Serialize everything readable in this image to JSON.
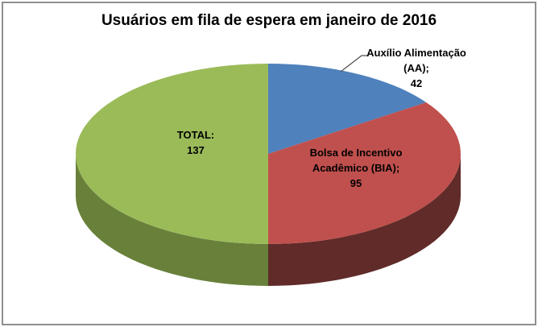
{
  "title": "Usuários em fila de espera em janeiro de 2016",
  "frame": {
    "background": "#FFFFFF",
    "border_color": "#8F8F8F"
  },
  "chart_data": {
    "type": "pie",
    "style": "3d",
    "title": "Usuários em fila de espera em janeiro de 2016",
    "start_angle_deg": 0,
    "direction": "clockwise",
    "legend": "none",
    "slices": [
      {
        "name": "Auxílio Alimentação (AA)",
        "value": 42,
        "color": "#4F81BD",
        "side_color": "#39536F",
        "label_lines": [
          "Auxílio Alimentação",
          "(AA);",
          "42"
        ],
        "label_placement": "outside-with-leader"
      },
      {
        "name": "Bolsa de Incentivo Acadêmico (BIA)",
        "value": 95,
        "color": "#C0504D",
        "side_color": "#602B29",
        "label_lines": [
          "Bolsa de Incentivo",
          "Acadêmico (BIA);",
          "95"
        ],
        "label_placement": "inside"
      },
      {
        "name": "TOTAL",
        "value": 137,
        "color": "#9BBB59",
        "side_color": "#68803A",
        "label_lines": [
          "TOTAL:",
          "137"
        ],
        "label_placement": "inside"
      }
    ],
    "leader_line_color": "#4D4D4D",
    "text_color": "#000000"
  }
}
